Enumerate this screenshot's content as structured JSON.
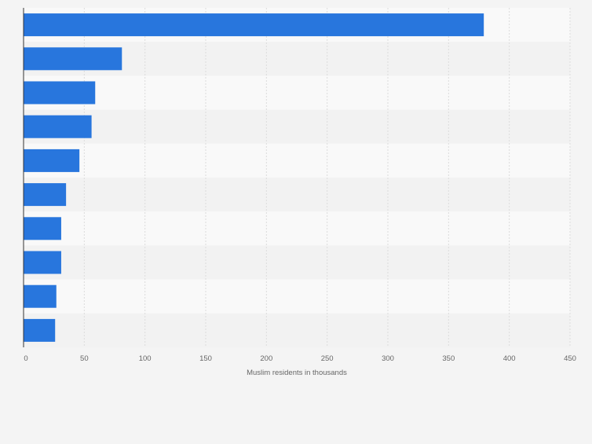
{
  "chart_data": {
    "type": "bar",
    "orientation": "horizontal",
    "categories": [
      "",
      "",
      "",
      "",
      "",
      "",
      "",
      "",
      "",
      ""
    ],
    "values": [
      379,
      81,
      59,
      56,
      46,
      35,
      31,
      31,
      27,
      26
    ],
    "title": "",
    "xlabel": "Muslim residents in thousands",
    "ylabel": "",
    "xlim": [
      0,
      450
    ],
    "x_ticks": [
      0,
      50,
      100,
      150,
      200,
      250,
      300,
      350,
      400,
      450
    ],
    "x_tick_labels": [
      "0",
      "50",
      "100",
      "150",
      "200",
      "250",
      "300",
      "350",
      "400",
      "450"
    ],
    "grid": true,
    "legend": "none",
    "colors": {
      "bar": "#2876dd",
      "background": "#f4f4f4",
      "band_light": "#f9f9f9",
      "band_dark": "#f2f2f2",
      "gridline": "#dcdcdc",
      "axis": "#666666",
      "tick_text": "#666666"
    }
  }
}
